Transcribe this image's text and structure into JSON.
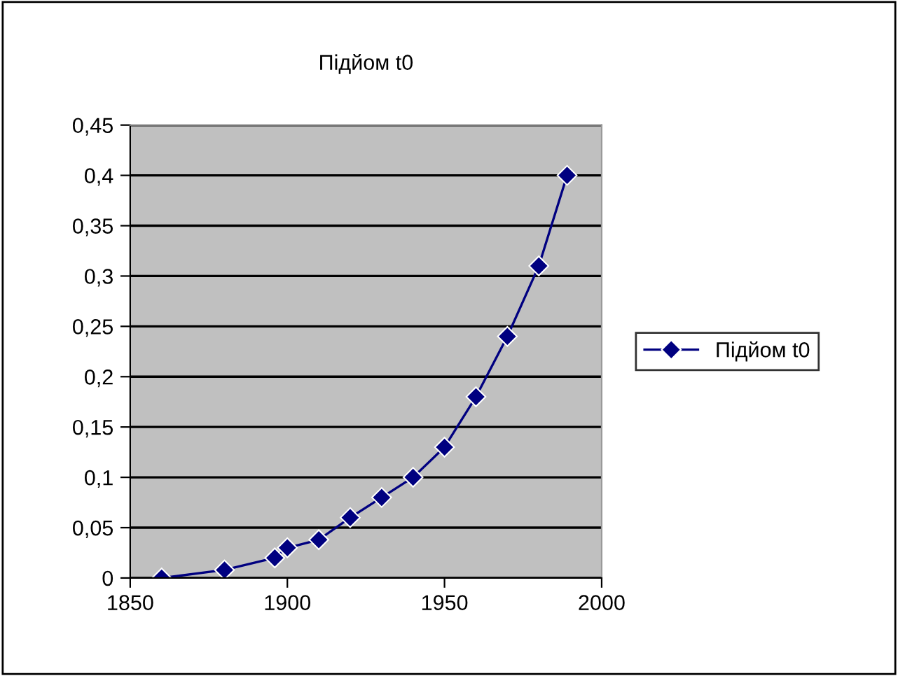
{
  "chart_data": {
    "type": "line",
    "title": "Підйом t0",
    "series": [
      {
        "name": "Підйом t0",
        "color": "#000080",
        "x": [
          1860,
          1880,
          1896,
          1900,
          1910,
          1920,
          1930,
          1940,
          1950,
          1960,
          1970,
          1980,
          1989
        ],
        "values": [
          0,
          0.008,
          0.02,
          0.03,
          0.038,
          0.06,
          0.08,
          0.1,
          0.13,
          0.18,
          0.24,
          0.31,
          0.4
        ]
      }
    ],
    "xlim": [
      1850,
      2000
    ],
    "xticks": [
      1850,
      1900,
      1950,
      2000
    ],
    "ylim": [
      0,
      0.45
    ],
    "yticks": [
      {
        "value": 0,
        "label": "0"
      },
      {
        "value": 0.05,
        "label": "0,05"
      },
      {
        "value": 0.1,
        "label": "0,1"
      },
      {
        "value": 0.15,
        "label": "0,15"
      },
      {
        "value": 0.2,
        "label": "0,2"
      },
      {
        "value": 0.25,
        "label": "0,25"
      },
      {
        "value": 0.3,
        "label": "0,3"
      },
      {
        "value": 0.35,
        "label": "0,35"
      },
      {
        "value": 0.4,
        "label": "0,4"
      },
      {
        "value": 0.45,
        "label": "0,45"
      }
    ],
    "grid": "y",
    "legend": "right",
    "marker": "diamond",
    "line_style": "solid"
  }
}
